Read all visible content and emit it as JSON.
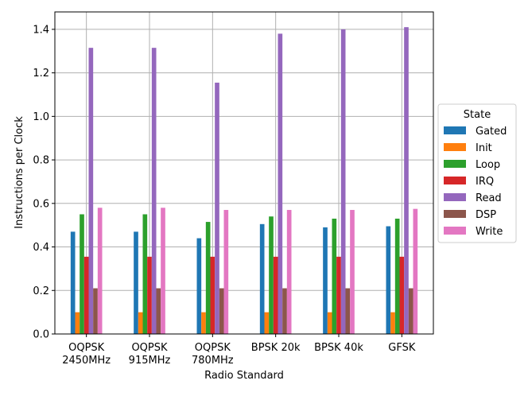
{
  "chart_data": {
    "type": "bar",
    "xlabel": "Radio Standard",
    "ylabel": "Instructions per Clock",
    "ylim": [
      0,
      1.48
    ],
    "yticks": [
      "0.0",
      "0.2",
      "0.4",
      "0.6",
      "0.8",
      "1.0",
      "1.2",
      "1.4"
    ],
    "grid": true,
    "legend_title": "State",
    "legend_position": "outside-right",
    "categories": [
      [
        "OQPSK",
        "2450MHz"
      ],
      [
        "OQPSK",
        "915MHz"
      ],
      [
        "OQPSK",
        "780MHz"
      ],
      [
        "BPSK 20k"
      ],
      [
        "BPSK 40k"
      ],
      [
        "GFSK"
      ]
    ],
    "series": [
      {
        "name": "Gated",
        "color": "#1f77b4",
        "values": [
          0.47,
          0.47,
          0.44,
          0.505,
          0.49,
          0.495
        ]
      },
      {
        "name": "Init",
        "color": "#ff7f0e",
        "values": [
          0.1,
          0.1,
          0.1,
          0.1,
          0.1,
          0.1
        ]
      },
      {
        "name": "Loop",
        "color": "#2ca02c",
        "values": [
          0.55,
          0.55,
          0.515,
          0.54,
          0.53,
          0.53
        ]
      },
      {
        "name": "IRQ",
        "color": "#d62728",
        "values": [
          0.355,
          0.355,
          0.355,
          0.355,
          0.355,
          0.355
        ]
      },
      {
        "name": "Read",
        "color": "#9467bd",
        "values": [
          1.315,
          1.315,
          1.155,
          1.38,
          1.4,
          1.41
        ]
      },
      {
        "name": "DSP",
        "color": "#8c564b",
        "values": [
          0.21,
          0.21,
          0.21,
          0.21,
          0.21,
          0.21
        ]
      },
      {
        "name": "Write",
        "color": "#e377c2",
        "values": [
          0.58,
          0.58,
          0.57,
          0.57,
          0.57,
          0.575
        ]
      }
    ]
  }
}
